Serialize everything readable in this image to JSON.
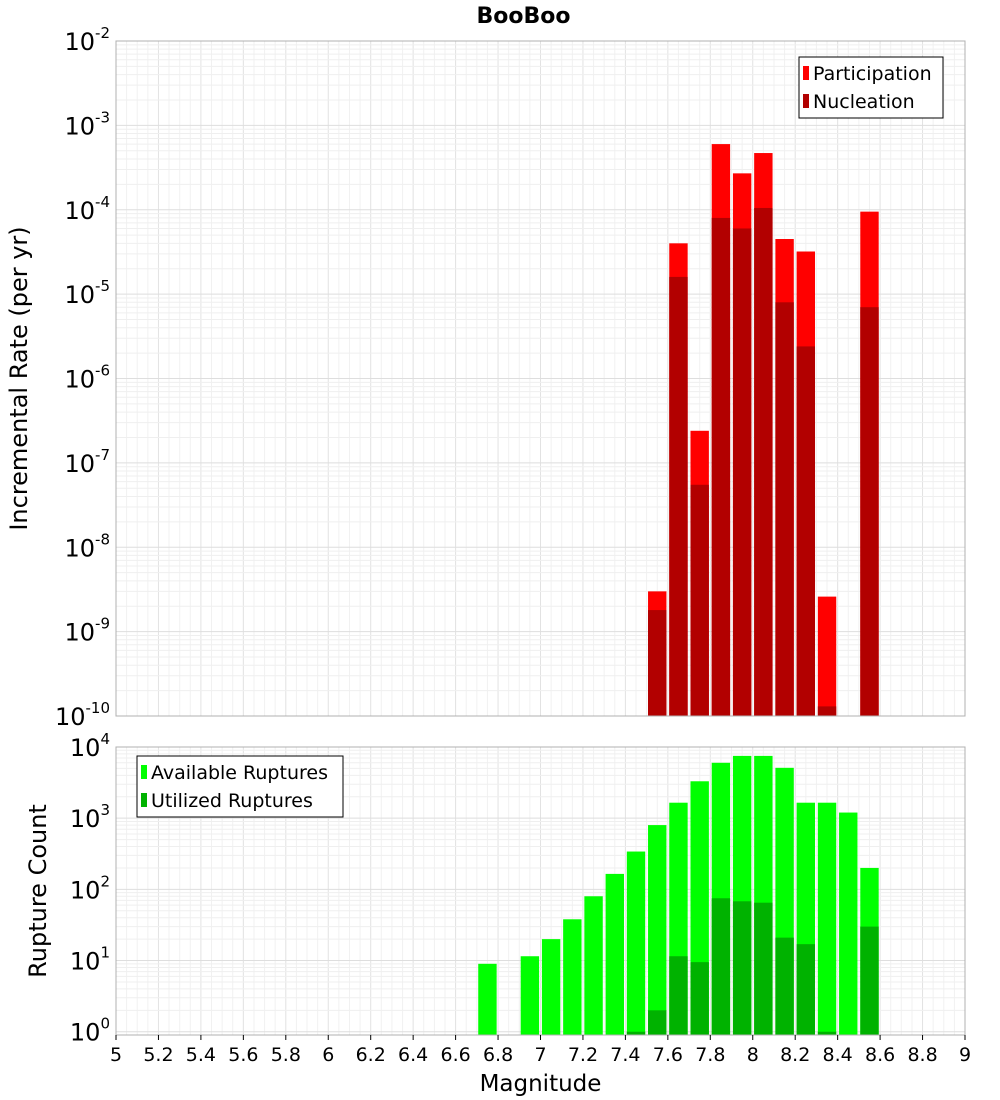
{
  "chart_data": [
    {
      "type": "bar",
      "title": "BooBoo",
      "ylabel": "Incremental Rate (per yr)",
      "xlabel": "",
      "x_range": [
        5,
        9
      ],
      "y_scale": "log",
      "y_range": [
        1e-10,
        0.01
      ],
      "y_tick_exponents": [
        -10,
        -9,
        -8,
        -7,
        -6,
        -5,
        -4,
        -3,
        -2
      ],
      "grid": true,
      "legend_position": "top-right",
      "colors": {
        "Participation": "#ff0000",
        "Nucleation": "#b20000"
      },
      "series": [
        {
          "name": "Participation",
          "x": [
            7.55,
            7.65,
            7.75,
            7.85,
            7.95,
            8.05,
            8.15,
            8.25,
            8.35,
            8.55
          ],
          "values": [
            3e-09,
            4e-05,
            2.4e-07,
            0.0006,
            0.00027,
            0.00047,
            4.5e-05,
            3.2e-05,
            2.6e-09,
            9.5e-05
          ]
        },
        {
          "name": "Nucleation",
          "x": [
            7.55,
            7.65,
            7.75,
            7.85,
            7.95,
            8.05,
            8.15,
            8.25,
            8.35,
            8.55
          ],
          "values": [
            1.8e-09,
            1.6e-05,
            5.5e-08,
            8e-05,
            6e-05,
            0.000105,
            8e-06,
            2.4e-06,
            1.3e-10,
            7e-06
          ]
        }
      ]
    },
    {
      "type": "bar",
      "title": "",
      "ylabel": "Rupture Count",
      "xlabel": "Magnitude",
      "x_range": [
        5,
        9
      ],
      "x_ticks": [
        "5",
        "5.2",
        "5.4",
        "5.6",
        "5.8",
        "6",
        "6.2",
        "6.4",
        "6.6",
        "6.8",
        "7",
        "7.2",
        "7.4",
        "7.6",
        "7.8",
        "8",
        "8.2",
        "8.4",
        "8.6",
        "8.8",
        "9"
      ],
      "y_scale": "log",
      "y_range": [
        0.9,
        10000
      ],
      "y_tick_exponents": [
        0,
        1,
        2,
        3,
        4
      ],
      "grid": true,
      "legend_position": "top-left",
      "colors": {
        "Available Ruptures": "#00ff00",
        "Utilized Ruptures": "#00b200"
      },
      "series": [
        {
          "name": "Available Ruptures",
          "x": [
            6.75,
            6.95,
            7.05,
            7.15,
            7.25,
            7.35,
            7.45,
            7.55,
            7.65,
            7.75,
            7.85,
            7.95,
            8.05,
            8.15,
            8.25,
            8.35,
            8.45,
            8.55
          ],
          "values": [
            9,
            11.5,
            20,
            38,
            80,
            165,
            340,
            800,
            1650,
            3300,
            6000,
            7500,
            7500,
            5100,
            1650,
            1650,
            1200,
            200
          ]
        },
        {
          "name": "Utilized Ruptures",
          "x": [
            7.45,
            7.55,
            7.65,
            7.75,
            7.85,
            7.95,
            8.05,
            8.15,
            8.25,
            8.35,
            8.55
          ],
          "values": [
            1,
            2,
            11.5,
            9.5,
            75,
            68,
            65,
            21,
            17,
            1,
            30
          ]
        }
      ]
    }
  ]
}
